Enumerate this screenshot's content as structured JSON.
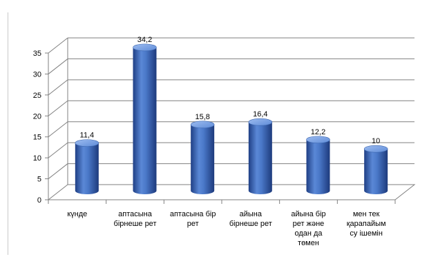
{
  "chart_data": {
    "type": "bar",
    "categories": [
      [
        "күнде"
      ],
      [
        "аптасына",
        "бірнеше рет"
      ],
      [
        "аптасына бір",
        "рет"
      ],
      [
        "айына",
        "бірнеше рет"
      ],
      [
        "айына бір",
        "рет және",
        "одан да",
        "төмен"
      ],
      [
        "мен тек",
        "қарапайым",
        "су ішемін"
      ]
    ],
    "values": [
      11.4,
      34.2,
      15.8,
      16.4,
      12.2,
      10
    ],
    "value_labels": [
      "11,4",
      "34,2",
      "15,8",
      "16,4",
      "12,2",
      "10"
    ],
    "y_ticks": [
      "0",
      "5",
      "10",
      "15",
      "20",
      "25",
      "30",
      "35"
    ],
    "ylim": [
      0,
      35
    ],
    "grid": true,
    "style": "3d-cylinder",
    "colors": {
      "bar": "#3f6fc0",
      "bar_dark": "#1f3f85",
      "bar_light": "#8fb2ea",
      "grid": "#7f7f7f"
    }
  }
}
